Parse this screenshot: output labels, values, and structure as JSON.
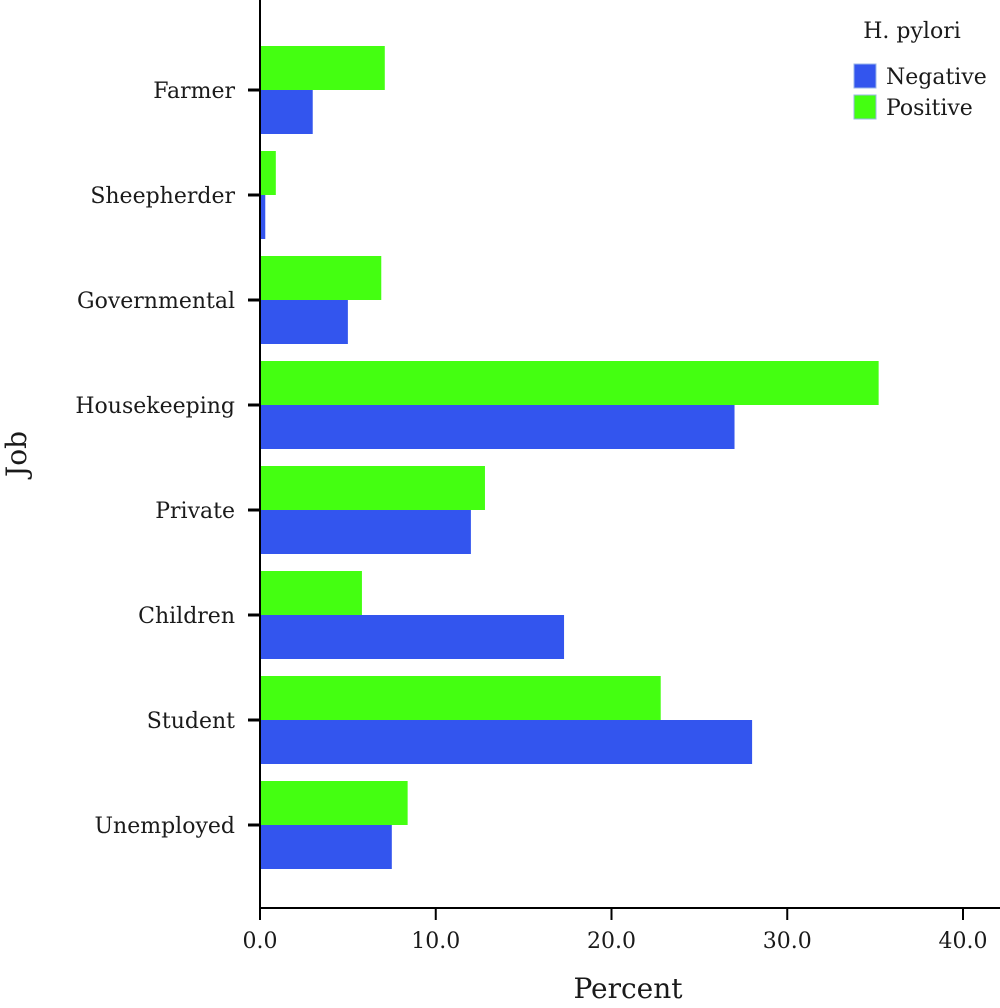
{
  "chart_data": {
    "type": "bar",
    "orientation": "horizontal",
    "categories": [
      "Farmer",
      "Sheepherder",
      "Governmental",
      "Housekeeping",
      "Private",
      "Children",
      "Student",
      "Unemployed"
    ],
    "series": [
      {
        "name": "Negative",
        "color": "#3355ee",
        "values": [
          3.0,
          0.3,
          5.0,
          27.0,
          12.0,
          17.3,
          28.0,
          7.5
        ]
      },
      {
        "name": "Positive",
        "color": "#44ff11",
        "values": [
          7.1,
          0.9,
          6.9,
          35.2,
          12.8,
          5.8,
          22.8,
          8.4
        ]
      }
    ],
    "xlabel": "Percent",
    "ylabel": "Job",
    "xlim": [
      0,
      42
    ],
    "xticks": [
      0,
      10,
      20,
      30,
      40
    ],
    "xtick_labels": [
      "0.0",
      "10.0",
      "20.0",
      "30.0",
      "40.0"
    ],
    "grid": false,
    "legend": {
      "title": "H. pylori",
      "placement": "top-right"
    }
  }
}
